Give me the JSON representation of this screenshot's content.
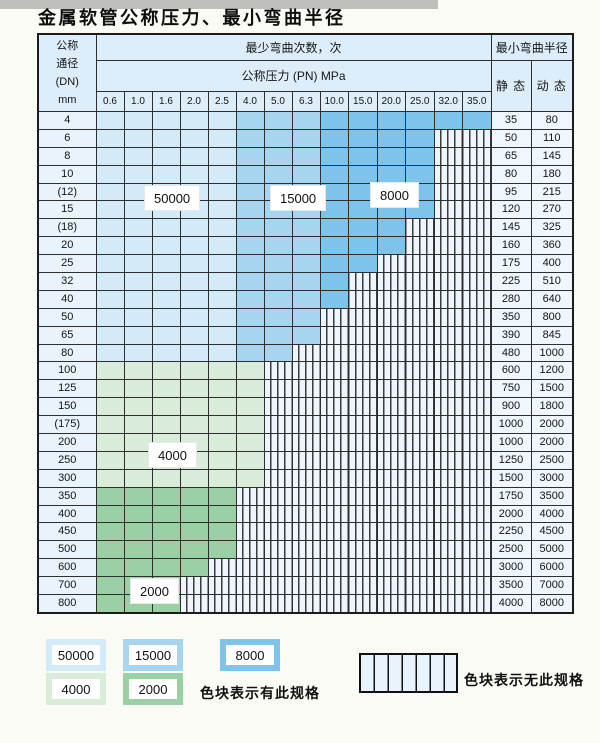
{
  "title": "金属软管公称压力、最小弯曲半径",
  "colors": {
    "b1": "#d3eaf8",
    "b2": "#a7d5f0",
    "b3": "#7ec4ea",
    "g1": "#d9ecd9",
    "g2": "#9ad0a4",
    "hatch": "#eef5fc",
    "hdr": "#ddeefa",
    "lbl": "#e9f3fb",
    "val": "#eff6fd",
    "grid": "#2e2e2e"
  },
  "table": {
    "header": {
      "dn_label_lines": [
        "公称",
        "通径",
        "(DN)",
        "mm"
      ],
      "cycles_header": "最少弯曲次数，次",
      "pressure_header": "公称压力 (PN) MPa",
      "radius_header": "最小弯曲半径",
      "static_label": "静 态",
      "dynamic_label": "动 态",
      "pressure_columns": [
        "0.6",
        "1.0",
        "1.6",
        "2.0",
        "2.5",
        "4.0",
        "5.0",
        "6.3",
        "10.0",
        "15.0",
        "20.0",
        "25.0",
        "32.0",
        "35.0"
      ]
    },
    "zone_labels": [
      "50000",
      "15000",
      "8000",
      "4000",
      "2000"
    ],
    "cell_code_meaning": {
      "b1": "50000次",
      "b2": "15000次",
      "b3": "8000次",
      "g1": "4000次",
      "g2": "2000次",
      "x": "无此规格"
    },
    "rows": [
      {
        "dn": "4",
        "cells": [
          "b1",
          "b1",
          "b1",
          "b1",
          "b1",
          "b2",
          "b2",
          "b2",
          "b3",
          "b3",
          "b3",
          "b3",
          "b3",
          "b3"
        ],
        "static": "35",
        "dynamic": "80"
      },
      {
        "dn": "6",
        "cells": [
          "b1",
          "b1",
          "b1",
          "b1",
          "b1",
          "b2",
          "b2",
          "b2",
          "b3",
          "b3",
          "b3",
          "b3",
          "x",
          "x"
        ],
        "static": "50",
        "dynamic": "110"
      },
      {
        "dn": "8",
        "cells": [
          "b1",
          "b1",
          "b1",
          "b1",
          "b1",
          "b2",
          "b2",
          "b2",
          "b3",
          "b3",
          "b3",
          "b3",
          "x",
          "x"
        ],
        "static": "65",
        "dynamic": "145"
      },
      {
        "dn": "10",
        "cells": [
          "b1",
          "b1",
          "b1",
          "b1",
          "b1",
          "b2",
          "b2",
          "b2",
          "b3",
          "b3",
          "b3",
          "b3",
          "x",
          "x"
        ],
        "static": "80",
        "dynamic": "180"
      },
      {
        "dn": "(12)",
        "cells": [
          "b1",
          "b1",
          "b1",
          "b1",
          "b1",
          "b2",
          "b2",
          "b2",
          "b3",
          "b3",
          "b3",
          "b3",
          "x",
          "x"
        ],
        "static": "95",
        "dynamic": "215"
      },
      {
        "dn": "15",
        "cells": [
          "b1",
          "b1",
          "b1",
          "b1",
          "b1",
          "b2",
          "b2",
          "b2",
          "b3",
          "b3",
          "b3",
          "b3",
          "x",
          "x"
        ],
        "static": "120",
        "dynamic": "270"
      },
      {
        "dn": "(18)",
        "cells": [
          "b1",
          "b1",
          "b1",
          "b1",
          "b1",
          "b2",
          "b2",
          "b2",
          "b3",
          "b3",
          "b3",
          "x",
          "x",
          "x"
        ],
        "static": "145",
        "dynamic": "325"
      },
      {
        "dn": "20",
        "cells": [
          "b1",
          "b1",
          "b1",
          "b1",
          "b1",
          "b2",
          "b2",
          "b2",
          "b3",
          "b3",
          "b3",
          "x",
          "x",
          "x"
        ],
        "static": "160",
        "dynamic": "360"
      },
      {
        "dn": "25",
        "cells": [
          "b1",
          "b1",
          "b1",
          "b1",
          "b1",
          "b2",
          "b2",
          "b2",
          "b3",
          "b3",
          "x",
          "x",
          "x",
          "x"
        ],
        "static": "175",
        "dynamic": "400"
      },
      {
        "dn": "32",
        "cells": [
          "b1",
          "b1",
          "b1",
          "b1",
          "b1",
          "b2",
          "b2",
          "b2",
          "b3",
          "x",
          "x",
          "x",
          "x",
          "x"
        ],
        "static": "225",
        "dynamic": "510"
      },
      {
        "dn": "40",
        "cells": [
          "b1",
          "b1",
          "b1",
          "b1",
          "b1",
          "b2",
          "b2",
          "b2",
          "b3",
          "x",
          "x",
          "x",
          "x",
          "x"
        ],
        "static": "280",
        "dynamic": "640"
      },
      {
        "dn": "50",
        "cells": [
          "b1",
          "b1",
          "b1",
          "b1",
          "b1",
          "b2",
          "b2",
          "b2",
          "x",
          "x",
          "x",
          "x",
          "x",
          "x"
        ],
        "static": "350",
        "dynamic": "800"
      },
      {
        "dn": "65",
        "cells": [
          "b1",
          "b1",
          "b1",
          "b1",
          "b1",
          "b2",
          "b2",
          "b2",
          "x",
          "x",
          "x",
          "x",
          "x",
          "x"
        ],
        "static": "390",
        "dynamic": "845"
      },
      {
        "dn": "80",
        "cells": [
          "b1",
          "b1",
          "b1",
          "b1",
          "b1",
          "b2",
          "b2",
          "x",
          "x",
          "x",
          "x",
          "x",
          "x",
          "x"
        ],
        "static": "480",
        "dynamic": "1000"
      },
      {
        "dn": "100",
        "cells": [
          "g1",
          "g1",
          "g1",
          "g1",
          "g1",
          "g1",
          "x",
          "x",
          "x",
          "x",
          "x",
          "x",
          "x",
          "x"
        ],
        "static": "600",
        "dynamic": "1200"
      },
      {
        "dn": "125",
        "cells": [
          "g1",
          "g1",
          "g1",
          "g1",
          "g1",
          "g1",
          "x",
          "x",
          "x",
          "x",
          "x",
          "x",
          "x",
          "x"
        ],
        "static": "750",
        "dynamic": "1500"
      },
      {
        "dn": "150",
        "cells": [
          "g1",
          "g1",
          "g1",
          "g1",
          "g1",
          "g1",
          "x",
          "x",
          "x",
          "x",
          "x",
          "x",
          "x",
          "x"
        ],
        "static": "900",
        "dynamic": "1800"
      },
      {
        "dn": "(175)",
        "cells": [
          "g1",
          "g1",
          "g1",
          "g1",
          "g1",
          "g1",
          "x",
          "x",
          "x",
          "x",
          "x",
          "x",
          "x",
          "x"
        ],
        "static": "1000",
        "dynamic": "2000"
      },
      {
        "dn": "200",
        "cells": [
          "g1",
          "g1",
          "g1",
          "g1",
          "g1",
          "g1",
          "x",
          "x",
          "x",
          "x",
          "x",
          "x",
          "x",
          "x"
        ],
        "static": "1000",
        "dynamic": "2000"
      },
      {
        "dn": "250",
        "cells": [
          "g1",
          "g1",
          "g1",
          "g1",
          "g1",
          "g1",
          "x",
          "x",
          "x",
          "x",
          "x",
          "x",
          "x",
          "x"
        ],
        "static": "1250",
        "dynamic": "2500"
      },
      {
        "dn": "300",
        "cells": [
          "g1",
          "g1",
          "g1",
          "g1",
          "g1",
          "g1",
          "x",
          "x",
          "x",
          "x",
          "x",
          "x",
          "x",
          "x"
        ],
        "static": "1500",
        "dynamic": "3000"
      },
      {
        "dn": "350",
        "cells": [
          "g2",
          "g2",
          "g2",
          "g2",
          "g2",
          "x",
          "x",
          "x",
          "x",
          "x",
          "x",
          "x",
          "x",
          "x"
        ],
        "static": "1750",
        "dynamic": "3500"
      },
      {
        "dn": "400",
        "cells": [
          "g2",
          "g2",
          "g2",
          "g2",
          "g2",
          "x",
          "x",
          "x",
          "x",
          "x",
          "x",
          "x",
          "x",
          "x"
        ],
        "static": "2000",
        "dynamic": "4000"
      },
      {
        "dn": "450",
        "cells": [
          "g2",
          "g2",
          "g2",
          "g2",
          "g2",
          "x",
          "x",
          "x",
          "x",
          "x",
          "x",
          "x",
          "x",
          "x"
        ],
        "static": "2250",
        "dynamic": "4500"
      },
      {
        "dn": "500",
        "cells": [
          "g2",
          "g2",
          "g2",
          "g2",
          "g2",
          "x",
          "x",
          "x",
          "x",
          "x",
          "x",
          "x",
          "x",
          "x"
        ],
        "static": "2500",
        "dynamic": "5000"
      },
      {
        "dn": "600",
        "cells": [
          "g2",
          "g2",
          "g2",
          "g2",
          "x",
          "x",
          "x",
          "x",
          "x",
          "x",
          "x",
          "x",
          "x",
          "x"
        ],
        "static": "3000",
        "dynamic": "6000"
      },
      {
        "dn": "700",
        "cells": [
          "g2",
          "g2",
          "g2",
          "x",
          "x",
          "x",
          "x",
          "x",
          "x",
          "x",
          "x",
          "x",
          "x",
          "x"
        ],
        "static": "3500",
        "dynamic": "7000"
      },
      {
        "dn": "800",
        "cells": [
          "g2",
          "g2",
          "g2",
          "x",
          "x",
          "x",
          "x",
          "x",
          "x",
          "x",
          "x",
          "x",
          "x",
          "x"
        ],
        "static": "4000",
        "dynamic": "8000"
      }
    ]
  },
  "legend": {
    "swatches": [
      {
        "label": "50000",
        "color_key": "b1"
      },
      {
        "label": "15000",
        "color_key": "b2"
      },
      {
        "label": "8000",
        "color_key": "b3"
      },
      {
        "label": "4000",
        "color_key": "g1"
      },
      {
        "label": "2000",
        "color_key": "g2"
      }
    ],
    "has_spec_note": "色块表示有此规格",
    "no_spec_note": "色块表示无此规格"
  }
}
